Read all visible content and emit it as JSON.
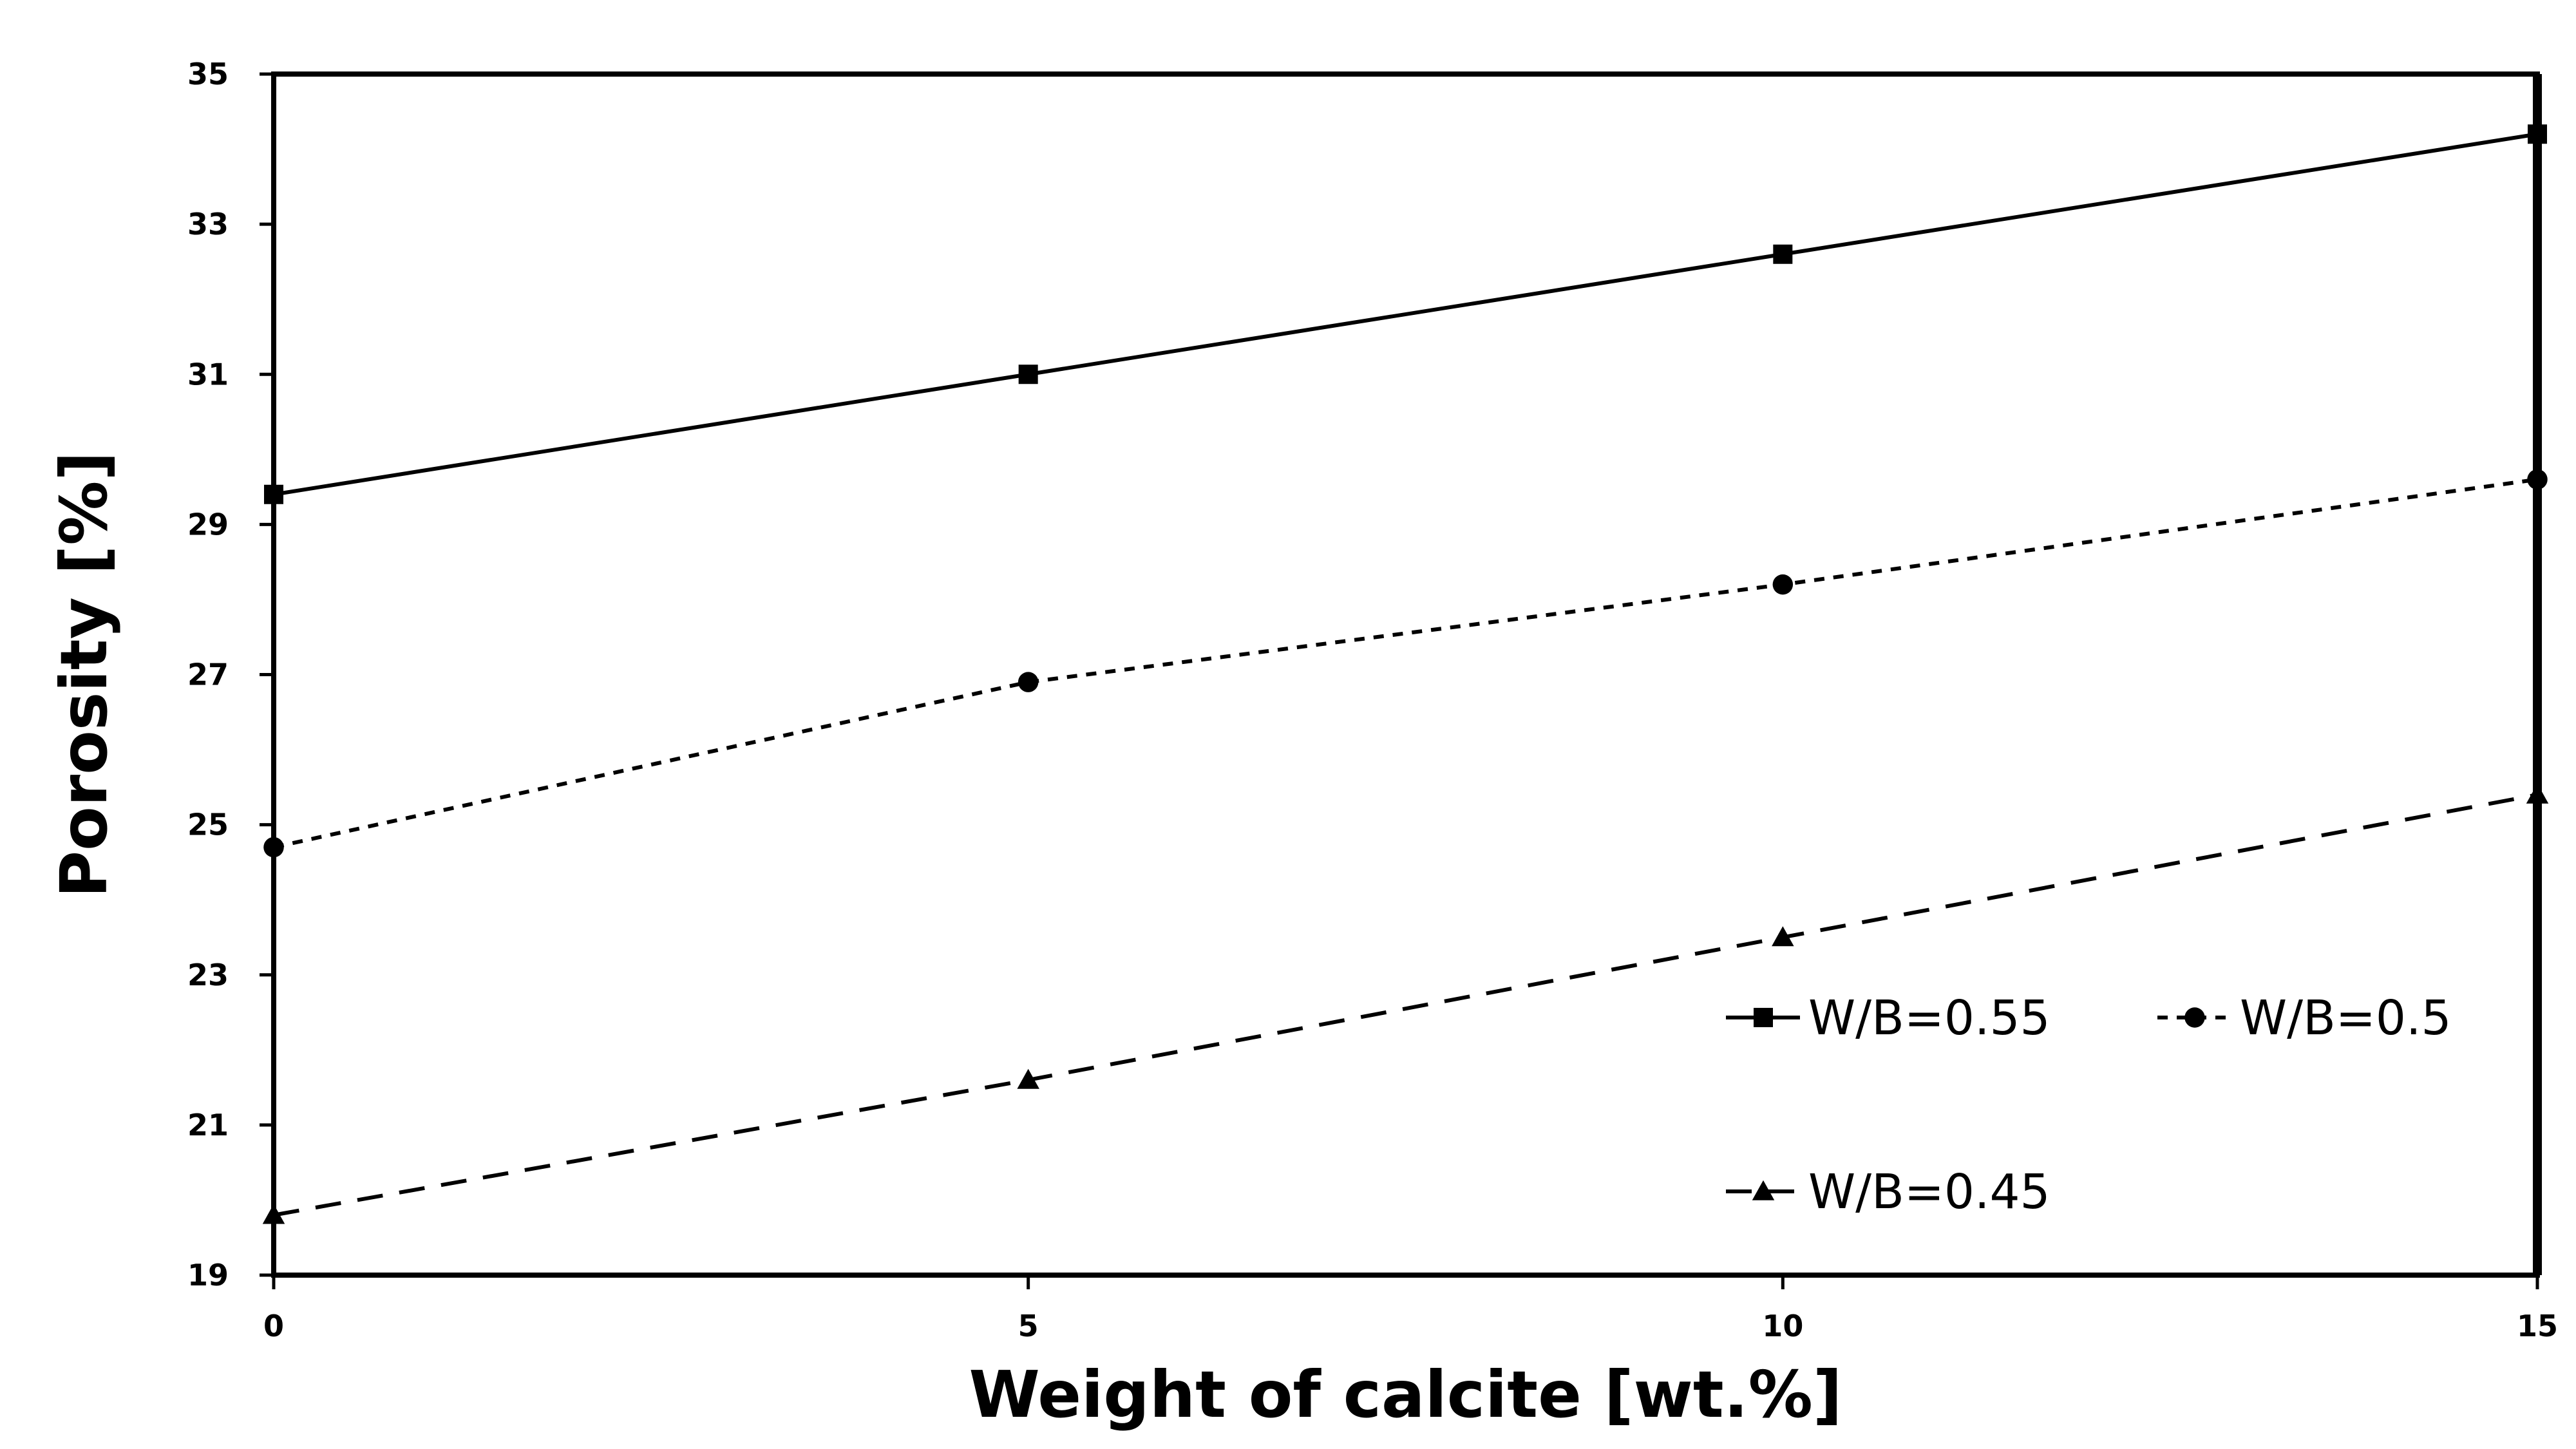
{
  "chart_data": {
    "type": "line",
    "title": "",
    "xlabel": "Weight of calcite [wt.%]",
    "ylabel": "Porosity [%]",
    "x": [
      0,
      5,
      10,
      15
    ],
    "xticks": [
      "0",
      "5",
      "10",
      "15"
    ],
    "xlim": [
      0,
      15
    ],
    "yticks": [
      "19",
      "21",
      "23",
      "25",
      "27",
      "29",
      "31",
      "33",
      "35"
    ],
    "ylim": [
      19,
      35
    ],
    "grid": false,
    "legend_position": "bottom-right",
    "series": [
      {
        "name": "W/B=0.55",
        "values": [
          29.4,
          31.0,
          32.6,
          34.2
        ],
        "marker": "square",
        "line_style": "solid",
        "color": "#000000"
      },
      {
        "name": "W/B=0.5",
        "values": [
          24.7,
          26.9,
          28.2,
          29.6
        ],
        "marker": "circle",
        "line_style": "dotted",
        "color": "#000000"
      },
      {
        "name": "W/B=0.45",
        "values": [
          19.8,
          21.6,
          23.5,
          25.4
        ],
        "marker": "triangle",
        "line_style": "dashed",
        "color": "#000000"
      }
    ]
  }
}
